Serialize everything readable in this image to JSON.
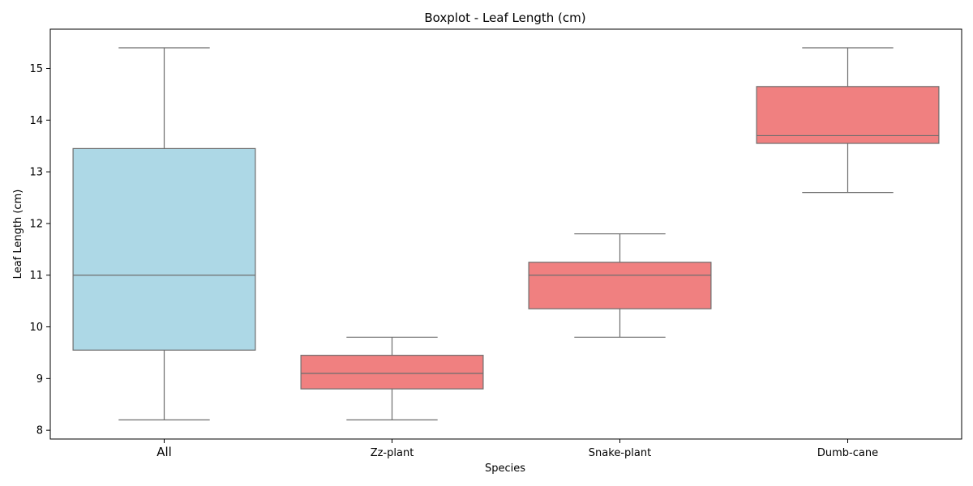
{
  "chart_data": {
    "type": "box",
    "title": "Boxplot - Leaf Length (cm)",
    "xlabel": "Species",
    "ylabel": "Leaf Length (cm)",
    "ylim": [
      7.83,
      15.76
    ],
    "yticks": [
      8,
      9,
      10,
      11,
      12,
      13,
      14,
      15
    ],
    "categories": [
      "All",
      "Zz-plant",
      "Snake-plant",
      "Dumb-cane"
    ],
    "boxes": [
      {
        "category": "All",
        "whisker_low": 8.2,
        "q1": 9.55,
        "median": 11.0,
        "q3": 13.45,
        "whisker_high": 15.4,
        "color": "#add8e6"
      },
      {
        "category": "Zz-plant",
        "whisker_low": 8.2,
        "q1": 8.8,
        "median": 9.1,
        "q3": 9.45,
        "whisker_high": 9.8,
        "color": "#f08080"
      },
      {
        "category": "Snake-plant",
        "whisker_low": 9.8,
        "q1": 10.35,
        "median": 11.0,
        "q3": 11.25,
        "whisker_high": 11.8,
        "color": "#f08080"
      },
      {
        "category": "Dumb-cane",
        "whisker_low": 12.6,
        "q1": 13.55,
        "median": 13.7,
        "q3": 14.65,
        "whisker_high": 15.4,
        "color": "#f08080"
      }
    ],
    "grid": false,
    "legend": "none"
  }
}
